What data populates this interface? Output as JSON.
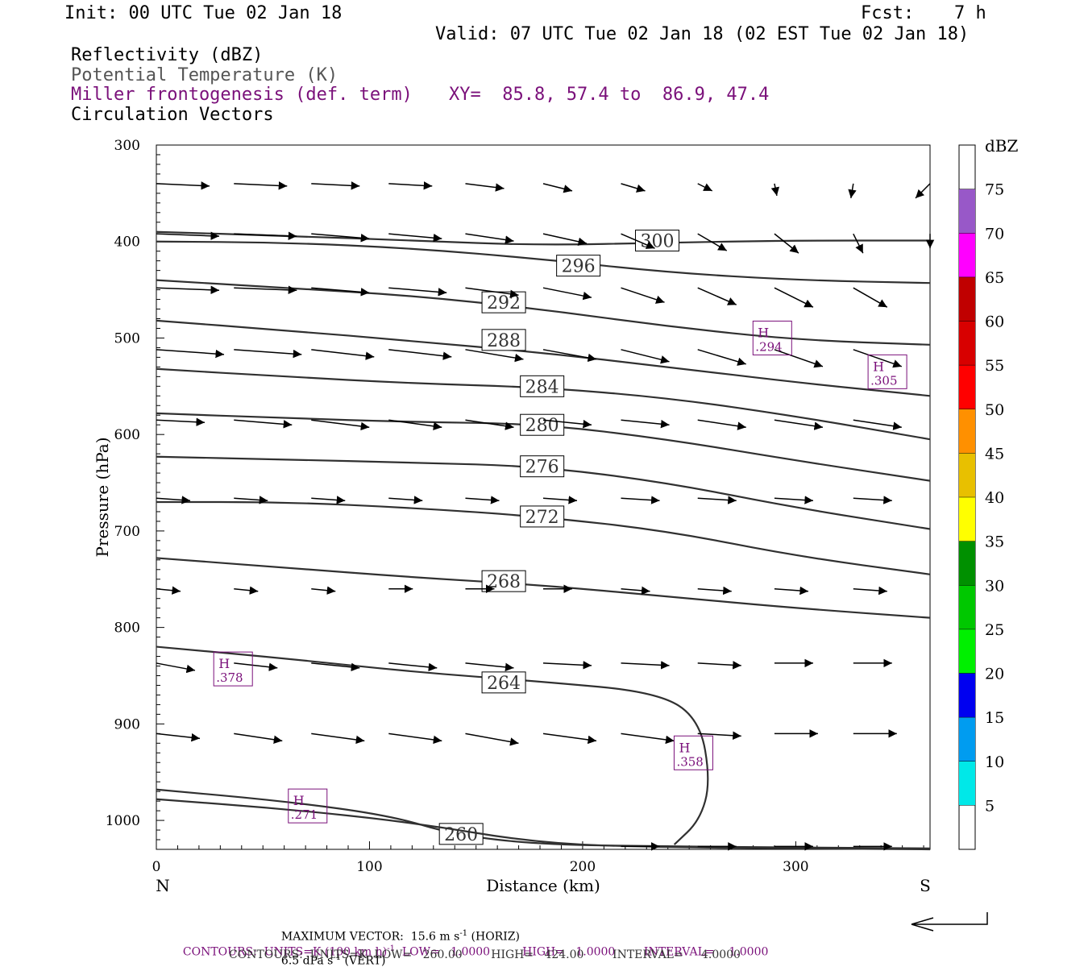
{
  "header": {
    "init": "Init: 00 UTC Tue 02 Jan 18",
    "fcst_label": "Fcst:",
    "fcst_value": "7 h",
    "valid": "Valid: 07 UTC Tue 02 Jan 18 (02 EST Tue 02 Jan 18)",
    "field1": "Reflectivity (dBZ)",
    "field2": "Potential Temperature (K)",
    "field3": "Miller frontogenesis (def. term)",
    "xy": "XY=  85.8, 57.4 to  86.9, 47.4",
    "field4": "Circulation Vectors"
  },
  "colors": {
    "theta": "#303030",
    "frontogenesis": "#7a107a",
    "vectors": "#000000",
    "colorbar": [
      "#00e8e8",
      "#009cf0",
      "#0000f0",
      "#00f000",
      "#00c800",
      "#009000",
      "#ffff00",
      "#e8c000",
      "#ff9000",
      "#ff0000",
      "#d80000",
      "#c00000",
      "#ff00ff",
      "#9858c8"
    ]
  },
  "chart_data": {
    "type": "line",
    "xlabel": "Distance (km)",
    "ylabel": "Pressure (hPa)",
    "xlim": [
      0,
      363
    ],
    "ylim": [
      1030,
      300
    ],
    "x_ticks": [
      0,
      100,
      200,
      300
    ],
    "y_ticks": [
      300,
      400,
      500,
      600,
      700,
      800,
      900,
      1000
    ],
    "x_end_labels": {
      "left": "N",
      "right": "S"
    },
    "theta_contours": [
      {
        "label": "300",
        "label_at": [
          235,
          399
        ],
        "points": [
          [
            0,
            390
          ],
          [
            60,
            394
          ],
          [
            120,
            399
          ],
          [
            180,
            404
          ],
          [
            240,
            401
          ],
          [
            300,
            399
          ],
          [
            363,
            399
          ]
        ]
      },
      {
        "label": "296",
        "label_at": [
          198,
          425
        ],
        "points": [
          [
            0,
            400
          ],
          [
            60,
            401
          ],
          [
            120,
            407
          ],
          [
            180,
            418
          ],
          [
            240,
            432
          ],
          [
            300,
            440
          ],
          [
            363,
            443
          ]
        ]
      },
      {
        "label": "292",
        "label_at": [
          163,
          463
        ],
        "points": [
          [
            0,
            440
          ],
          [
            60,
            448
          ],
          [
            120,
            456
          ],
          [
            180,
            470
          ],
          [
            240,
            488
          ],
          [
            300,
            502
          ],
          [
            363,
            507
          ]
        ]
      },
      {
        "label": "288",
        "label_at": [
          163,
          502
        ],
        "points": [
          [
            0,
            482
          ],
          [
            60,
            492
          ],
          [
            120,
            503
          ],
          [
            180,
            515
          ],
          [
            240,
            530
          ],
          [
            300,
            546
          ],
          [
            363,
            560
          ]
        ]
      },
      {
        "label": "284",
        "label_at": [
          181,
          550
        ],
        "points": [
          [
            0,
            532
          ],
          [
            60,
            540
          ],
          [
            120,
            547
          ],
          [
            180,
            551
          ],
          [
            240,
            562
          ],
          [
            300,
            581
          ],
          [
            363,
            605
          ]
        ]
      },
      {
        "label": "280",
        "label_at": [
          181,
          590
        ],
        "points": [
          [
            0,
            578
          ],
          [
            60,
            583
          ],
          [
            120,
            587
          ],
          [
            180,
            589
          ],
          [
            240,
            605
          ],
          [
            300,
            627
          ],
          [
            363,
            648
          ]
        ]
      },
      {
        "label": "276",
        "label_at": [
          181,
          633
        ],
        "points": [
          [
            0,
            623
          ],
          [
            60,
            626
          ],
          [
            120,
            629
          ],
          [
            180,
            633
          ],
          [
            240,
            650
          ],
          [
            300,
            676
          ],
          [
            363,
            698
          ]
        ]
      },
      {
        "label": "272",
        "label_at": [
          181,
          685
        ],
        "points": [
          [
            0,
            670
          ],
          [
            60,
            670
          ],
          [
            120,
            676
          ],
          [
            180,
            685
          ],
          [
            240,
            700
          ],
          [
            300,
            726
          ],
          [
            363,
            745
          ]
        ]
      },
      {
        "label": "268",
        "label_at": [
          163,
          752
        ],
        "points": [
          [
            0,
            728
          ],
          [
            60,
            738
          ],
          [
            120,
            748
          ],
          [
            180,
            756
          ],
          [
            240,
            768
          ],
          [
            300,
            780
          ],
          [
            363,
            790
          ]
        ]
      },
      {
        "label": "264",
        "label_at": [
          163,
          857
        ],
        "points": [
          [
            0,
            820
          ],
          [
            60,
            832
          ],
          [
            120,
            846
          ],
          [
            180,
            856
          ],
          [
            235,
            867
          ],
          [
            255,
            895
          ],
          [
            260,
            960
          ],
          [
            255,
            1000
          ],
          [
            243,
            1025
          ]
        ]
      },
      {
        "label": "260",
        "label_at": [
          143,
          1014
        ],
        "points": [
          [
            0,
            968
          ],
          [
            60,
            980
          ],
          [
            110,
            995
          ],
          [
            140,
            1015
          ],
          [
            180,
            1025
          ],
          [
            240,
            1027
          ],
          [
            300,
            1028
          ],
          [
            363,
            1029
          ]
        ]
      },
      {
        "label": "",
        "label_at": null,
        "points": [
          [
            0,
            978
          ],
          [
            60,
            988
          ],
          [
            120,
            1002
          ],
          [
            180,
            1024
          ],
          [
            240,
            1028
          ],
          [
            300,
            1029
          ],
          [
            363,
            1030
          ]
        ]
      }
    ],
    "frontogenesis_maxima": [
      {
        "label": "H",
        "value": ".294",
        "at": [
          289,
          500
        ]
      },
      {
        "label": "H",
        "value": ".305",
        "at": [
          343,
          535
        ]
      },
      {
        "label": "H",
        "value": ".378",
        "at": [
          36,
          843
        ]
      },
      {
        "label": "H",
        "value": ".358",
        "at": [
          252,
          930
        ]
      },
      {
        "label": "H",
        "value": ".271",
        "at": [
          71,
          985
        ]
      }
    ],
    "vectors": {
      "x": [
        0,
        36.4,
        72.7,
        109,
        145,
        181.5,
        218,
        254,
        290,
        327,
        363
      ],
      "rows": [
        {
          "p": 340,
          "u": [
            11,
            11,
            10,
            9,
            8,
            6,
            5,
            3,
            0.5,
            -0.5,
            -3
          ],
          "w": [
            -0.5,
            -0.5,
            -0.5,
            -0.5,
            -1,
            -1.5,
            -1.5,
            -1.5,
            -2.5,
            -3,
            -3
          ]
        },
        {
          "p": 392,
          "u": [
            13,
            13,
            12,
            11,
            10,
            9,
            7,
            6,
            5,
            2,
            0
          ],
          "w": [
            -0.5,
            -0.5,
            -1,
            -1,
            -1.5,
            -2,
            -3,
            -3.5,
            -4,
            -4,
            -3
          ]
        },
        {
          "p": 448,
          "u": [
            13,
            13,
            12,
            12,
            11,
            10,
            9,
            8,
            8,
            7,
            0
          ],
          "w": [
            -0.5,
            -0.5,
            -1,
            -1,
            -1.5,
            -2,
            -3,
            -3.5,
            -4,
            -4,
            0
          ]
        },
        {
          "p": 512,
          "u": [
            14,
            14,
            13,
            13,
            12,
            11,
            10,
            10,
            10,
            10,
            0
          ],
          "w": [
            -1,
            -1,
            -1.5,
            -1.5,
            -2,
            -2,
            -2.5,
            -3,
            -3.5,
            -3.5,
            0
          ]
        },
        {
          "p": 585,
          "u": [
            10,
            12,
            12,
            11,
            10,
            10,
            10,
            10,
            10,
            10,
            0
          ],
          "w": [
            -0.5,
            -1,
            -1.5,
            -1.5,
            -1.5,
            -1,
            -1,
            -1.5,
            -1.5,
            -1.5,
            0
          ]
        },
        {
          "p": 666,
          "u": [
            7,
            7,
            7,
            7,
            7,
            7,
            8,
            8,
            8,
            8,
            0
          ],
          "w": [
            -0.5,
            -0.5,
            -0.5,
            -0.5,
            -0.5,
            -0.5,
            -0.5,
            -0.5,
            -0.5,
            -0.5,
            0
          ]
        },
        {
          "p": 760,
          "u": [
            5,
            5,
            5,
            5,
            6,
            6,
            6,
            7,
            7,
            7,
            0
          ],
          "w": [
            -0.5,
            -0.5,
            -0.5,
            0,
            0,
            0,
            -0.5,
            -0.5,
            -0.5,
            -0.5,
            0
          ]
        },
        {
          "p": 837,
          "u": [
            8,
            9,
            10,
            10,
            10,
            10,
            10,
            9,
            8,
            8,
            0
          ],
          "w": [
            -1.5,
            -1,
            -1,
            -1,
            -1,
            -0.5,
            -0.5,
            -0.5,
            0,
            0,
            0
          ]
        },
        {
          "p": 910,
          "u": [
            9,
            10,
            11,
            11,
            11,
            11,
            11,
            9,
            9,
            9,
            0
          ],
          "w": [
            -1,
            -1.5,
            -1.5,
            -1.5,
            -2,
            -1.5,
            -1.5,
            -0.5,
            0,
            0,
            0
          ]
        },
        {
          "p": 1027,
          "u": [
            0,
            0,
            0,
            0,
            0,
            0,
            8,
            8,
            8,
            8,
            0
          ],
          "w": [
            0,
            0,
            0,
            0,
            0,
            0,
            0,
            0,
            0,
            0,
            0
          ]
        }
      ]
    },
    "colorbar": {
      "title": "dBZ",
      "labels": [
        "5",
        "10",
        "15",
        "20",
        "25",
        "30",
        "35",
        "40",
        "45",
        "50",
        "55",
        "60",
        "65",
        "70",
        "75"
      ]
    },
    "ref_vector_note": "reference arrow"
  },
  "footer": {
    "line1_a": "MAXIMUM VECTOR:  15.6 m s",
    "line1_b": " (HORIZ)",
    "line1_c": "6.5 dPa s",
    "line1_d": " (VERT)",
    "sup1": "-1",
    "line2_a": "CONTOURS:  UNITS=K (100 km h)",
    "line2_b": "  LOW=   1.0000         HIGH=   1.0000        INTERVAL=    1.0000",
    "line3": "CONTOURS:  UNITS=K  LOW=   260.00        HIGH=   424.00        INTERVAL=     4.0000"
  }
}
